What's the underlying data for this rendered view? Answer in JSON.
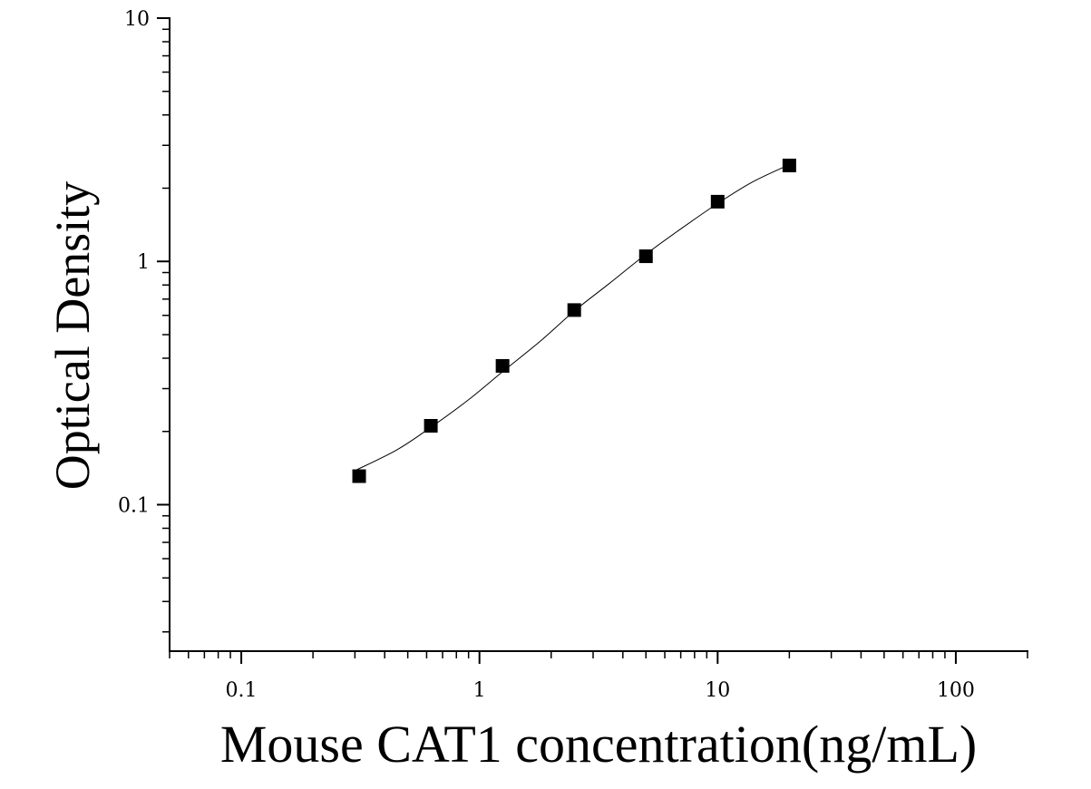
{
  "chart_data": {
    "type": "scatter",
    "title": "",
    "xlabel": "Mouse CAT1 concentration(ng/mL)",
    "ylabel": "Optical Density",
    "x_scale": "log",
    "y_scale": "log",
    "xlim": [
      0.05,
      200
    ],
    "ylim": [
      0.025,
      10
    ],
    "x_tick_labels": [
      "0.1",
      "1",
      "10",
      "100"
    ],
    "y_tick_labels": [
      "0.1",
      "1",
      "10"
    ],
    "grid": false,
    "legend": "none",
    "series": [
      {
        "marker": "square",
        "color": "#000000",
        "x": [
          0.3125,
          0.625,
          1.25,
          2.5,
          5,
          10,
          20
        ],
        "y": [
          0.131,
          0.211,
          0.372,
          0.631,
          1.05,
          1.76,
          2.48
        ]
      }
    ],
    "fit_curve": {
      "style": "thin-line",
      "color": "#000000",
      "x": [
        0.3,
        0.45,
        0.625,
        0.9,
        1.25,
        1.8,
        2.5,
        3.5,
        5,
        7,
        10,
        14,
        20
      ],
      "y": [
        0.138,
        0.168,
        0.208,
        0.27,
        0.352,
        0.47,
        0.625,
        0.81,
        1.07,
        1.36,
        1.73,
        2.12,
        2.5
      ]
    }
  }
}
